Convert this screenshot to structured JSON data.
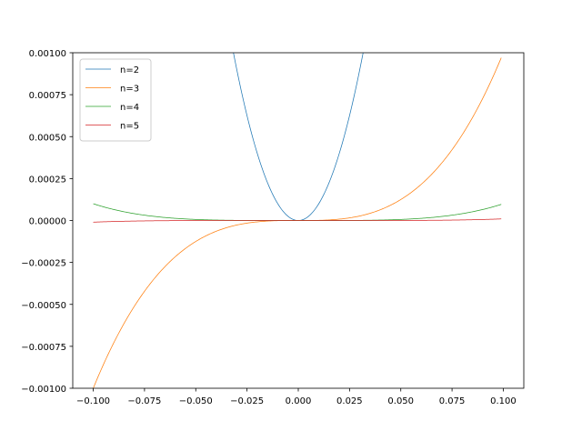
{
  "chart_data": {
    "type": "line",
    "title": "",
    "xlabel": "",
    "ylabel": "",
    "xlim": [
      -0.11,
      0.11
    ],
    "ylim": [
      -0.001,
      0.001
    ],
    "x_range": [
      -0.1,
      0.099
    ],
    "x_ticks": [
      -0.1,
      -0.075,
      -0.05,
      -0.025,
      0.0,
      0.025,
      0.05,
      0.075,
      0.1
    ],
    "x_tick_labels": [
      "−0.100",
      "−0.075",
      "−0.050",
      "−0.025",
      "0.000",
      "0.025",
      "0.050",
      "0.075",
      "0.100"
    ],
    "y_ticks": [
      -0.001,
      -0.00075,
      -0.0005,
      -0.00025,
      0.0,
      0.00025,
      0.0005,
      0.00075,
      0.001
    ],
    "y_tick_labels": [
      "−0.00100",
      "−0.00075",
      "−0.00050",
      "−0.00025",
      "0.00000",
      "0.00025",
      "0.00050",
      "0.00075",
      "0.00100"
    ],
    "grid": false,
    "legend_position": "upper-left",
    "series": [
      {
        "name": "n=2",
        "exponent": 2,
        "color": "#1f77b4"
      },
      {
        "name": "n=3",
        "exponent": 3,
        "color": "#ff7f0e"
      },
      {
        "name": "n=4",
        "exponent": 4,
        "color": "#2ca02c"
      },
      {
        "name": "n=5",
        "exponent": 5,
        "color": "#d62728"
      }
    ]
  }
}
